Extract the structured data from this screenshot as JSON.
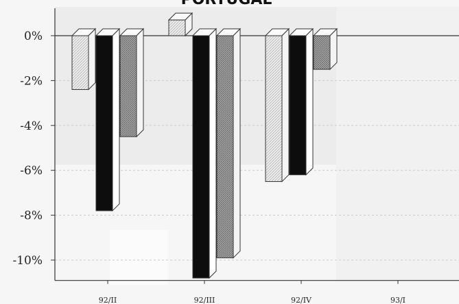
{
  "chart_data": {
    "type": "bar",
    "title": "PORTUGAL",
    "xlabel": "",
    "ylabel": "",
    "categories": [
      "92/II",
      "92/III",
      "92/IV",
      "93/I"
    ],
    "ylim": [
      -11,
      1
    ],
    "yticks": [
      0,
      -2,
      -4,
      -6,
      -8,
      -10
    ],
    "ytick_labels": [
      "0%",
      "-2%",
      "-4%",
      "-6%",
      "-8%",
      "-10%"
    ],
    "series": [
      {
        "values": [
          -2.4,
          0.7,
          -6.5,
          null
        ],
        "color": "#e2e2e2",
        "pattern": "light-hatch"
      },
      {
        "values": [
          -7.8,
          -10.8,
          -6.2,
          null
        ],
        "color": "#0d0d0d",
        "pattern": "solid"
      },
      {
        "values": [
          -4.5,
          -9.9,
          -1.5,
          null
        ],
        "color": "#9a9a9a",
        "pattern": "dark-hatch"
      }
    ],
    "grid": true,
    "legend": "none"
  }
}
